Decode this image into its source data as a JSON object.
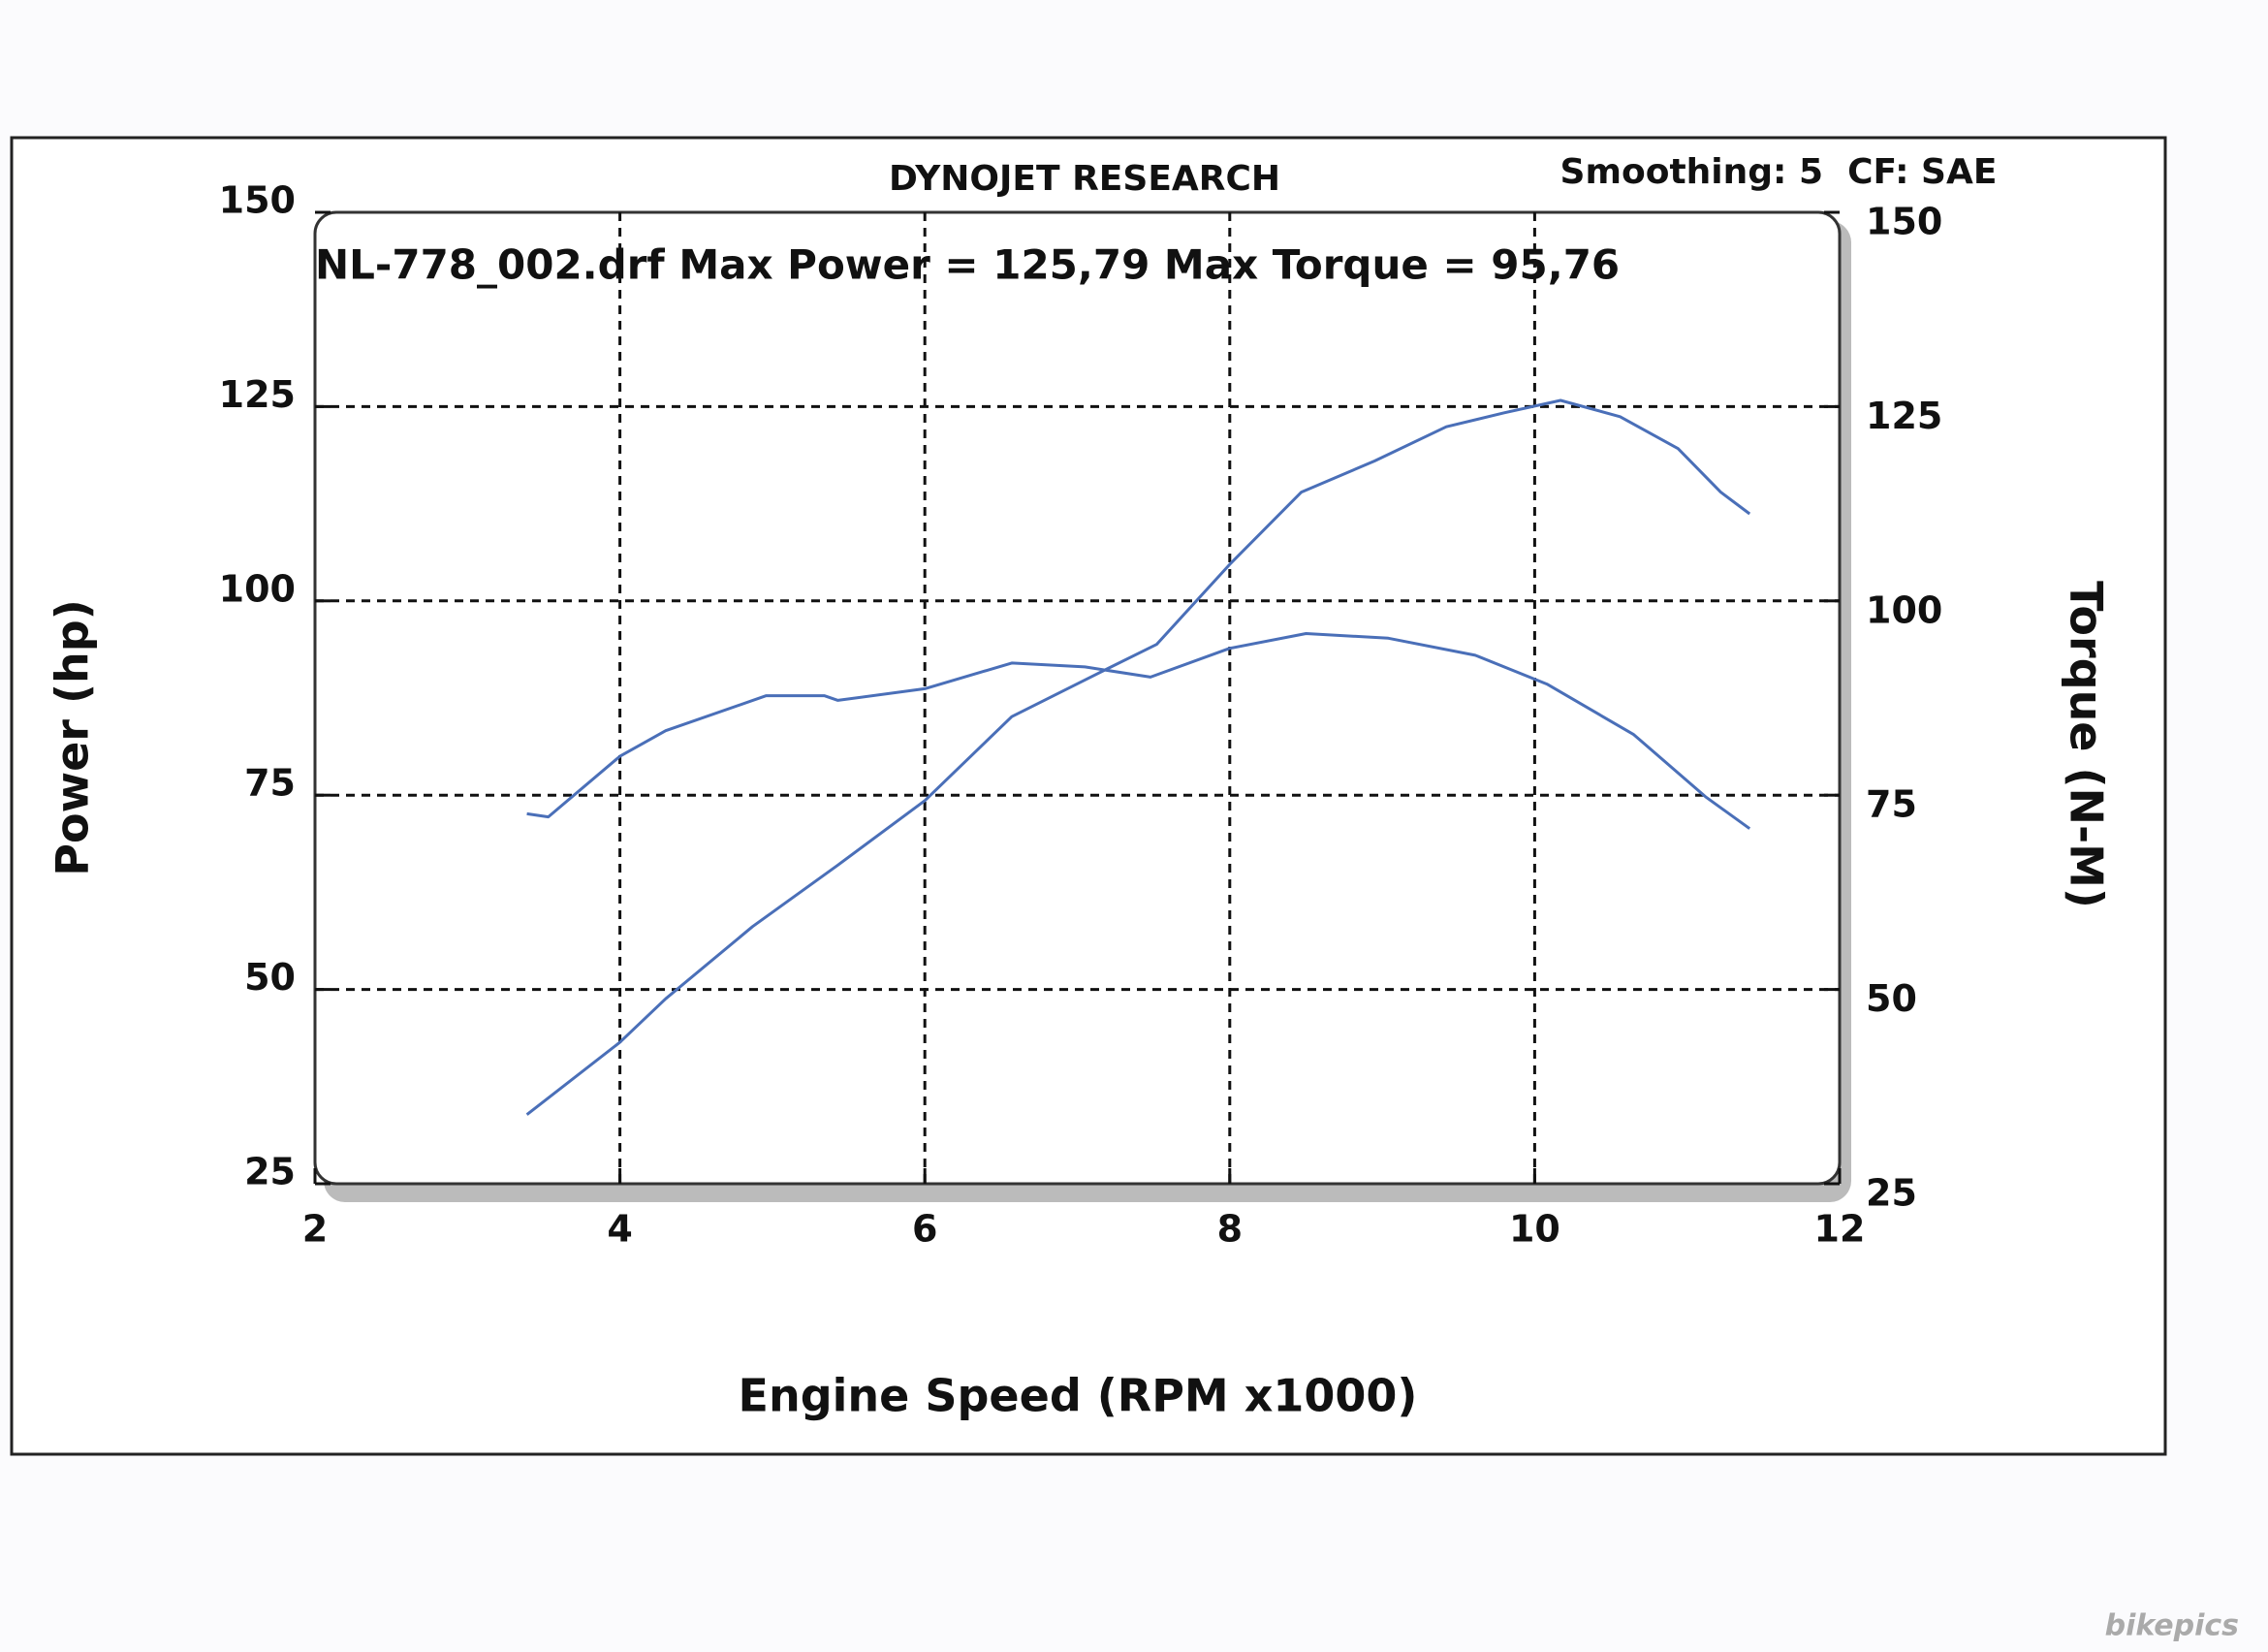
{
  "chart_data": {
    "type": "line",
    "title": "DYNOJET RESEARCH",
    "subtitle": "Smoothing: 5  CF: SAE",
    "annotation": "NL-778_002.drf Max Power = 125,79 Max Torque = 95,76",
    "x_label": "Engine Speed (RPM x1000)",
    "y_label": "Power (hp)",
    "y2_label": "Torque (N-M)",
    "watermark": "bikepics",
    "xlim": [
      2,
      12
    ],
    "xticks": [
      2,
      4,
      6,
      8,
      10,
      12
    ],
    "ylim": [
      25,
      150
    ],
    "yticks": [
      25,
      50,
      75,
      100,
      125,
      150
    ],
    "y2lim": [
      25,
      150
    ],
    "y2ticks": [
      25,
      50,
      75,
      100,
      125,
      150
    ],
    "grid": true,
    "series": [
      {
        "color": "#4a6fb8",
        "x": [
          3.39,
          4.0,
          4.3,
          4.87,
          5.43,
          6.0,
          6.57,
          7.14,
          7.52,
          8.0,
          8.47,
          8.95,
          9.42,
          9.8,
          10.17,
          10.56,
          10.94,
          11.22,
          11.41
        ],
        "values": [
          33.9,
          43.2,
          48.8,
          58.1,
          66,
          74.3,
          85.1,
          90.7,
          94.4,
          104.7,
          114,
          118,
          122.4,
          124.2,
          125.8,
          123.7,
          119.6,
          114,
          111.2
        ]
      },
      {
        "color": "#4a6fb8",
        "axis": "y2",
        "x": [
          3.39,
          3.53,
          4.0,
          4.3,
          4.96,
          5.34,
          5.43,
          6.0,
          6.57,
          7.05,
          7.48,
          8.0,
          8.5,
          9.04,
          9.61,
          10.08,
          10.65,
          11.12,
          11.41
        ],
        "values": [
          72.6,
          72.2,
          80,
          83.3,
          87.8,
          87.8,
          87.2,
          88.7,
          92,
          91.5,
          90.2,
          93.9,
          95.8,
          95.2,
          93,
          89.3,
          82.8,
          74.8,
          70.7
        ]
      }
    ]
  }
}
